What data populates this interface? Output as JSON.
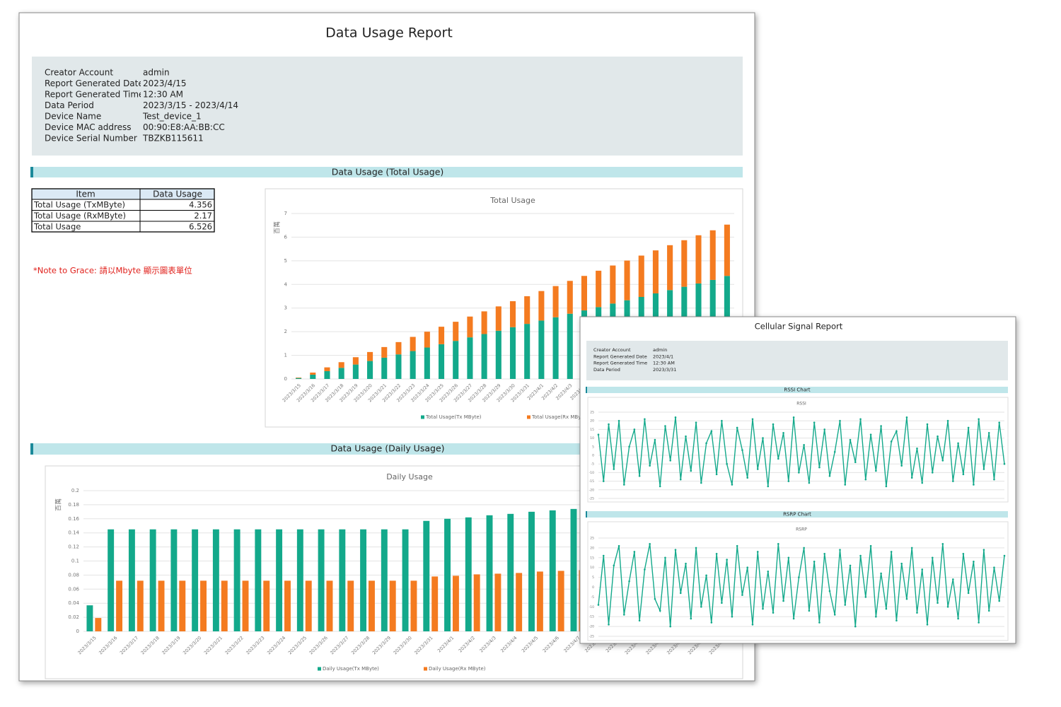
{
  "report": {
    "title": "Data Usage Report",
    "info": [
      {
        "label": "Creator Account",
        "value": "admin"
      },
      {
        "label": "Report Generated Date",
        "value": "2023/4/15"
      },
      {
        "label": "Report Generated Time",
        "value": "12:30 AM"
      },
      {
        "label": "Data Period",
        "value": "2023/3/15 - 2023/4/14"
      },
      {
        "label": "Device Name",
        "value": "Test_device_1"
      },
      {
        "label": "Device MAC address",
        "value": "00:90:E8:AA:BB:CC"
      },
      {
        "label": "Device Serial Number",
        "value": "TBZKB115611"
      }
    ],
    "sections": [
      "Data Usage (Total Usage)",
      "Data Usage (Daily Usage)"
    ]
  },
  "usage_table": {
    "header": [
      "Item",
      "Data Usage"
    ],
    "rows": [
      [
        "Total Usage (TxMByte)",
        4.356
      ],
      [
        "Total Usage (RxMByte)",
        2.17
      ],
      [
        "Total Usage",
        6.526
      ]
    ]
  },
  "note": "*Note to Grace: 請以Mbyte 顯示圖表單位",
  "signal_report": {
    "title": "Cellular Signal Report",
    "info": [
      {
        "label": "Creator Account",
        "value": "admin"
      },
      {
        "label": "Report Generated Date",
        "value": "2023/4/1"
      },
      {
        "label": "Report Generated Time",
        "value": "12:30 AM"
      },
      {
        "label": "Data Period",
        "value": "2023/3/31"
      }
    ],
    "sections": [
      "RSSI Chart",
      "RSRP Chart"
    ]
  },
  "chart_data": [
    {
      "type": "bar",
      "stacked": true,
      "title": "Total Usage",
      "y_label": "百萬",
      "categories": [
        "2023/3/15",
        "2023/3/16",
        "2023/3/17",
        "2023/3/18",
        "2023/3/19",
        "2023/3/20",
        "2023/3/21",
        "2023/3/22",
        "2023/3/23",
        "2023/3/24",
        "2023/3/25",
        "2023/3/26",
        "2023/3/27",
        "2023/3/28",
        "2023/3/29",
        "2023/3/30",
        "2023/3/31",
        "2023/4/1",
        "2023/4/2",
        "2023/4/3",
        "2023/4/4",
        "2023/4/5",
        "2023/4/6",
        "2023/4/7",
        "2023/4/8",
        "2023/4/9",
        "2023/4/10",
        "2023/4/11",
        "2023/4/12",
        "2023/4/13",
        "2023/4/14"
      ],
      "series": [
        {
          "name": "Total Usage(Tx MByte)",
          "color": "#13a98b",
          "values": [
            0.04,
            0.18,
            0.33,
            0.47,
            0.61,
            0.76,
            0.9,
            1.04,
            1.18,
            1.33,
            1.47,
            1.61,
            1.76,
            1.9,
            2.04,
            2.19,
            2.33,
            2.47,
            2.61,
            2.76,
            2.9,
            3.04,
            3.19,
            3.33,
            3.47,
            3.62,
            3.76,
            3.9,
            4.04,
            4.19,
            4.36
          ]
        },
        {
          "name": "Total Usage(Rx MByte)",
          "color": "#f47b20",
          "values": [
            0.02,
            0.09,
            0.16,
            0.24,
            0.31,
            0.38,
            0.45,
            0.52,
            0.6,
            0.67,
            0.74,
            0.81,
            0.88,
            0.96,
            1.03,
            1.1,
            1.17,
            1.25,
            1.32,
            1.39,
            1.46,
            1.54,
            1.61,
            1.68,
            1.75,
            1.82,
            1.9,
            1.97,
            2.04,
            2.1,
            2.17
          ]
        }
      ],
      "ylim": [
        0,
        7
      ],
      "yticks": [
        0,
        1,
        2,
        3,
        4,
        5,
        6,
        7
      ],
      "grid": true
    },
    {
      "type": "bar",
      "stacked": false,
      "title": "Daily Usage",
      "y_label": "百萬",
      "categories": [
        "2023/3/15",
        "2023/3/16",
        "2023/3/17",
        "2023/3/18",
        "2023/3/19",
        "2023/3/20",
        "2023/3/21",
        "2023/3/22",
        "2023/3/23",
        "2023/3/24",
        "2023/3/25",
        "2023/3/26",
        "2023/3/27",
        "2023/3/28",
        "2023/3/29",
        "2023/3/30",
        "2023/3/31",
        "2023/4/1",
        "2023/4/2",
        "2023/4/3",
        "2023/4/4",
        "2023/4/5",
        "2023/4/6",
        "2023/4/7",
        "2023/4/8",
        "2023/4/9",
        "2023/4/10",
        "2023/4/11",
        "2023/4/12",
        "2023/4/13",
        "2023/4/14"
      ],
      "series": [
        {
          "name": "Daily Usage(Tx MByte)",
          "color": "#13a98b",
          "values": [
            0.037,
            0.145,
            0.145,
            0.145,
            0.145,
            0.145,
            0.145,
            0.145,
            0.145,
            0.145,
            0.145,
            0.145,
            0.145,
            0.145,
            0.145,
            0.145,
            0.157,
            0.16,
            0.162,
            0.165,
            0.167,
            0.17,
            0.172,
            0.174,
            0.176,
            0.178,
            0.18,
            0.182,
            0.184,
            0.186,
            0.188
          ]
        },
        {
          "name": "Daily Usage(Rx MByte)",
          "color": "#f47b20",
          "values": [
            0.019,
            0.072,
            0.072,
            0.072,
            0.072,
            0.072,
            0.072,
            0.072,
            0.072,
            0.072,
            0.072,
            0.072,
            0.072,
            0.072,
            0.072,
            0.072,
            0.078,
            0.079,
            0.081,
            0.082,
            0.083,
            0.085,
            0.086,
            0.087,
            0.088,
            0.089,
            0.09,
            0.091,
            0.092,
            0.093,
            0.094
          ]
        }
      ],
      "ylim": [
        0,
        0.2
      ],
      "yticks": [
        0,
        0.02,
        0.04,
        0.06,
        0.08,
        0.1,
        0.12,
        0.14,
        0.16,
        0.18,
        0.2
      ],
      "grid": true
    },
    {
      "type": "line",
      "title": "RSSI",
      "series": [
        {
          "color": "#13a98b",
          "values": [
            12,
            -15,
            18,
            -8,
            20,
            -17,
            5,
            15,
            -12,
            21,
            -6,
            9,
            -18,
            17,
            -3,
            22,
            -14,
            11,
            -9,
            19,
            -16,
            7,
            14,
            -11,
            20,
            -5,
            -17,
            16,
            3,
            -13,
            21,
            -8,
            10,
            -18,
            18,
            -2,
            13,
            -15,
            22,
            -10,
            6,
            -16,
            19,
            -7,
            15,
            -12,
            2,
            20,
            -17,
            9,
            -4,
            21,
            -14,
            12,
            -9,
            17,
            -18,
            8,
            14,
            -6,
            22,
            -13,
            4,
            -16,
            18,
            -10,
            11,
            -3,
            20,
            -15,
            7,
            -11,
            16,
            -17,
            21,
            -8,
            13,
            -14,
            19,
            -5
          ]
        }
      ],
      "ylim": [
        -25,
        25
      ],
      "yticks": [
        25,
        20,
        15,
        10,
        5,
        0,
        -5,
        -10,
        -15,
        -20,
        -25
      ],
      "grid": true
    },
    {
      "type": "line",
      "title": "RSRP",
      "series": [
        {
          "color": "#13a98b",
          "values": [
            -9,
            16,
            -19,
            11,
            21,
            -14,
            3,
            18,
            -17,
            9,
            22,
            -6,
            -12,
            15,
            -20,
            19,
            -3,
            12,
            -16,
            20,
            -10,
            6,
            -18,
            17,
            -8,
            14,
            -15,
            21,
            -4,
            10,
            -19,
            18,
            -11,
            8,
            -13,
            22,
            -7,
            15,
            -16,
            5,
            20,
            -12,
            13,
            -18,
            17,
            -2,
            -14,
            19,
            -9,
            11,
            -20,
            16,
            -5,
            21,
            -15,
            7,
            -11,
            18,
            -17,
            12,
            -6,
            20,
            -13,
            9,
            -19,
            15,
            -8,
            22,
            -10,
            4,
            -16,
            17,
            -3,
            13,
            -18,
            19,
            -12,
            10,
            -7,
            16
          ]
        }
      ],
      "ylim": [
        -25,
        25
      ],
      "yticks": [
        25,
        20,
        15,
        10,
        5,
        0,
        -5,
        -10,
        -15,
        -20,
        -25
      ],
      "grid": true
    }
  ]
}
